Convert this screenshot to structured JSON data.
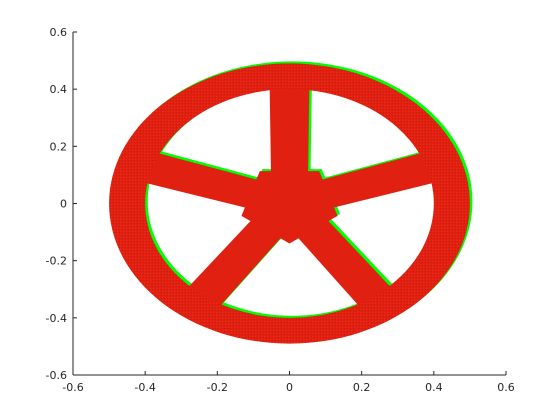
{
  "chart_data": {
    "type": "scatter",
    "title": "",
    "xlabel": "",
    "ylabel": "",
    "xlim": [
      -0.6,
      0.6
    ],
    "ylim": [
      -0.6,
      0.6
    ],
    "grid": false,
    "box": "axes box (left and bottom visible)",
    "x_ticks": [
      -0.6,
      -0.4,
      -0.2,
      0,
      0.2,
      0.4,
      0.6
    ],
    "x_tick_labels": [
      "-0.6",
      "-0.4",
      "-0.2",
      "0",
      "0.2",
      "0.4",
      "0.6"
    ],
    "y_ticks": [
      -0.6,
      -0.4,
      -0.2,
      0,
      0.2,
      0.4,
      0.6
    ],
    "y_tick_labels": [
      "-0.6",
      "-0.4",
      "-0.2",
      "0",
      "0.2",
      "0.4",
      "0.6"
    ],
    "series": [
      {
        "color": "#00ff00",
        "shape": "wheel",
        "center": [
          0.007,
          0.007
        ],
        "rim_outer_radii": [
          0.5,
          0.49
        ],
        "rim_inner_radii": [
          0.4,
          0.4
        ],
        "hub_radius": 0.14,
        "spoke_angles_deg": [
          90,
          18,
          -54,
          -126,
          -198
        ],
        "spoke_half_width": 0.05
      },
      {
        "color": "#e02010",
        "shape": "wheel",
        "center": [
          0,
          0
        ],
        "rim_outer_radii": [
          0.5,
          0.49
        ],
        "rim_inner_radii": [
          0.4,
          0.4
        ],
        "hub_radius": 0.14,
        "spoke_angles_deg": [
          90,
          18,
          -54,
          -126,
          -198
        ],
        "spoke_half_width": 0.05
      }
    ]
  }
}
